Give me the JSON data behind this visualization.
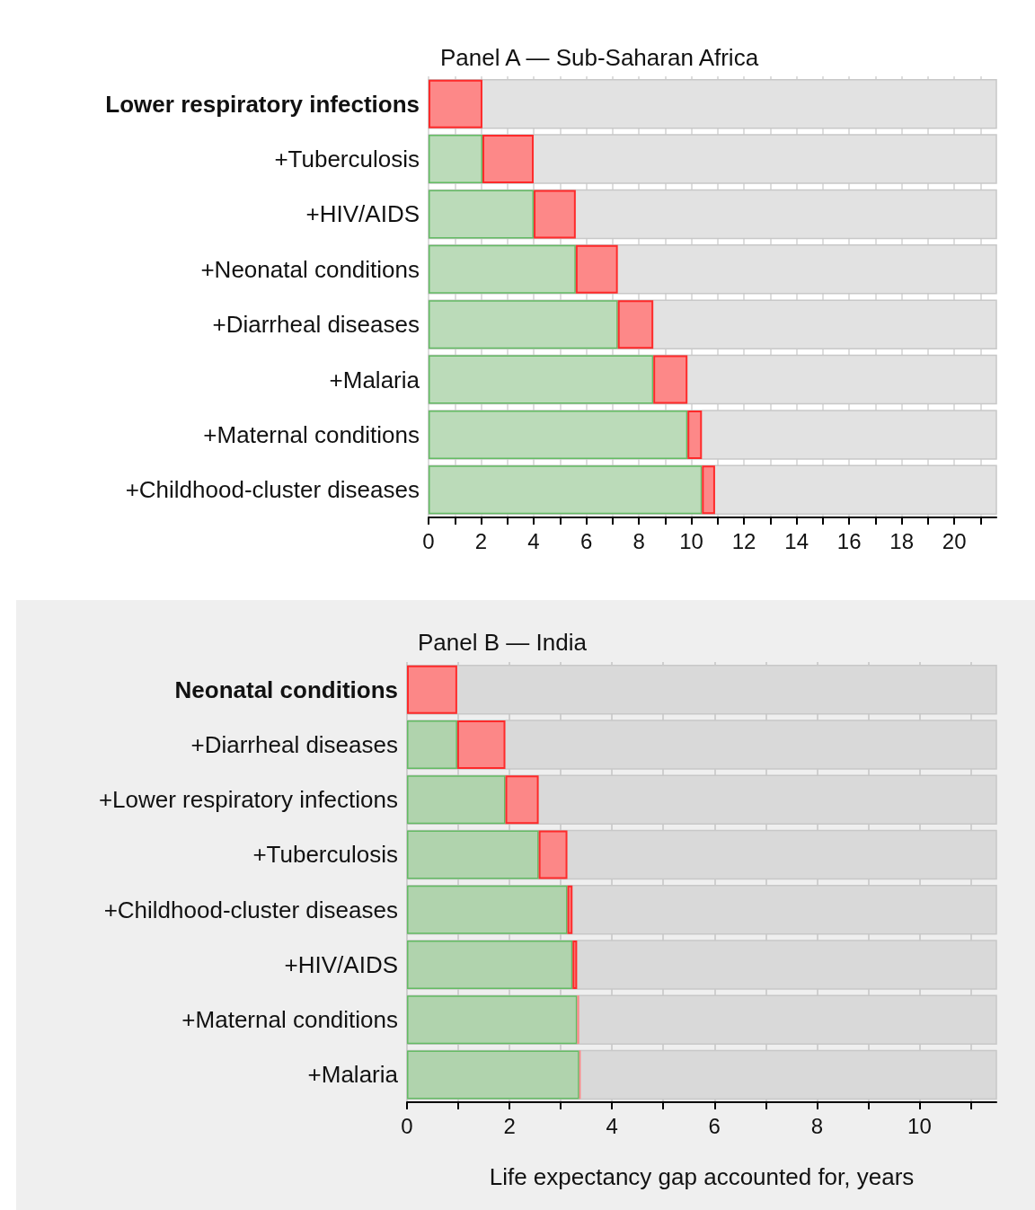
{
  "chart_data": [
    {
      "type": "bar",
      "orientation": "horizontal",
      "stacked": true,
      "title": "Panel A — Sub-Saharan Africa",
      "categories": [
        "Lower respiratory infections",
        "+Tuberculosis",
        "+HIV/AIDS",
        "+Neonatal conditions",
        "+Diarrheal diseases",
        "+Malaria",
        "+Maternal conditions",
        "+Childhood-cluster diseases"
      ],
      "series": [
        {
          "color": "#b7dab5",
          "values": [
            0,
            2.05,
            4.0,
            5.6,
            7.2,
            8.55,
            9.85,
            10.4
          ]
        },
        {
          "color": "#ff8080",
          "values": [
            2.05,
            1.95,
            1.6,
            1.6,
            1.35,
            1.3,
            0.55,
            0.5
          ]
        }
      ],
      "xlim": [
        0,
        21.6
      ],
      "xticks": [
        0,
        {
          "value": 1,
          "label": null
        },
        2,
        {
          "value": 3,
          "label": null
        },
        4,
        {
          "value": 5,
          "label": null
        },
        6,
        {
          "value": 7,
          "label": null
        },
        8,
        {
          "value": 9,
          "label": null
        },
        10,
        {
          "value": 11,
          "label": null
        },
        12,
        {
          "value": 13,
          "label": null
        },
        14,
        {
          "value": 15,
          "label": null
        },
        16,
        {
          "value": 17,
          "label": null
        },
        18,
        {
          "value": 19,
          "label": null
        },
        20,
        {
          "value": 21,
          "label": null
        }
      ],
      "grid": "x"
    },
    {
      "type": "bar",
      "orientation": "horizontal",
      "stacked": true,
      "title": "Panel B — India",
      "xlabel": "Life expectancy gap accounted for, years",
      "categories": [
        "Neonatal conditions",
        "+Diarrheal diseases",
        "+Lower respiratory infections",
        "+Tuberculosis",
        "+Childhood-cluster diseases",
        "+HIV/AIDS",
        "+Maternal conditions",
        "+Malaria"
      ],
      "series": [
        {
          "color": "#acd2a9",
          "values": [
            0,
            0.98,
            1.92,
            2.57,
            3.13,
            3.23,
            3.32,
            3.36
          ]
        },
        {
          "color": "#ff8080",
          "values": [
            0.98,
            0.94,
            0.65,
            0.56,
            0.1,
            0.09,
            0.04,
            0.03
          ]
        }
      ],
      "xlim": [
        0,
        11.5
      ],
      "xticks": [
        0,
        {
          "value": 1,
          "label": null
        },
        2,
        {
          "value": 3,
          "label": null
        },
        4,
        {
          "value": 5,
          "label": null
        },
        6,
        {
          "value": 7,
          "label": null
        },
        8,
        {
          "value": 9,
          "label": null
        },
        10,
        {
          "value": 11,
          "label": null
        }
      ],
      "grid": "x"
    }
  ]
}
